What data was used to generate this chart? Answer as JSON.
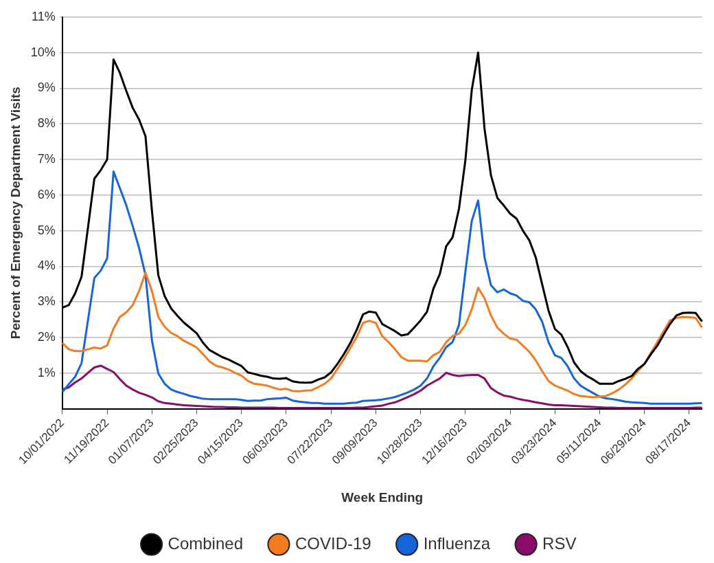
{
  "chart_data": {
    "type": "line",
    "xlabel": "Week Ending",
    "ylabel": "Percent of Emergency Department Visits",
    "categories": [
      "10/01/2022",
      null,
      null,
      null,
      null,
      null,
      null,
      "11/19/2022",
      null,
      null,
      null,
      null,
      null,
      null,
      "01/07/2023",
      null,
      null,
      null,
      null,
      null,
      null,
      "02/25/2023",
      null,
      null,
      null,
      null,
      null,
      null,
      "04/15/2023",
      null,
      null,
      null,
      null,
      null,
      null,
      "06/03/2023",
      null,
      null,
      null,
      null,
      null,
      null,
      "07/22/2023",
      null,
      null,
      null,
      null,
      null,
      null,
      "09/09/2023",
      null,
      null,
      null,
      null,
      null,
      null,
      "10/28/2023",
      null,
      null,
      null,
      null,
      null,
      null,
      "12/16/2023",
      null,
      null,
      null,
      null,
      null,
      null,
      "02/03/2024",
      null,
      null,
      null,
      null,
      null,
      null,
      "03/23/2024",
      null,
      null,
      null,
      null,
      null,
      null,
      "05/11/2024",
      null,
      null,
      null,
      null,
      null,
      null,
      "06/29/2024",
      null,
      null,
      null,
      null,
      null,
      null,
      "08/17/2024",
      null,
      null
    ],
    "series": [
      {
        "name": "Combined",
        "color": "#000000",
        "values": [
          2.84,
          2.91,
          3.24,
          3.71,
          5.08,
          6.46,
          6.7,
          7.0,
          9.81,
          9.43,
          8.92,
          8.45,
          8.12,
          7.65,
          5.57,
          3.75,
          3.16,
          2.82,
          2.61,
          2.42,
          2.27,
          2.12,
          1.85,
          1.65,
          1.55,
          1.45,
          1.38,
          1.29,
          1.2,
          1.02,
          0.98,
          0.93,
          0.9,
          0.85,
          0.84,
          0.86,
          0.77,
          0.74,
          0.73,
          0.74,
          0.82,
          0.88,
          1.02,
          1.26,
          1.53,
          1.84,
          2.21,
          2.65,
          2.73,
          2.7,
          2.38,
          2.28,
          2.18,
          2.06,
          2.09,
          2.28,
          2.48,
          2.72,
          3.37,
          3.78,
          4.56,
          4.81,
          5.61,
          6.97,
          8.95,
          10.0,
          7.86,
          6.56,
          5.92,
          5.71,
          5.48,
          5.34,
          5.0,
          4.73,
          4.25,
          3.5,
          2.76,
          2.24,
          2.08,
          1.73,
          1.3,
          1.06,
          0.92,
          0.82,
          0.7,
          0.7,
          0.7,
          0.78,
          0.84,
          0.92,
          1.12,
          1.26,
          1.53,
          1.77,
          2.08,
          2.38,
          2.62,
          2.69,
          2.7,
          2.69,
          2.45
        ]
      },
      {
        "name": "COVID-19",
        "color": "#f47b20",
        "values": [
          1.85,
          1.67,
          1.62,
          1.62,
          1.67,
          1.72,
          1.69,
          1.78,
          2.25,
          2.58,
          2.71,
          2.91,
          3.31,
          3.82,
          3.31,
          2.58,
          2.3,
          2.13,
          2.04,
          1.91,
          1.82,
          1.72,
          1.53,
          1.33,
          1.21,
          1.16,
          1.1,
          1.01,
          0.93,
          0.78,
          0.7,
          0.68,
          0.65,
          0.59,
          0.54,
          0.56,
          0.5,
          0.49,
          0.51,
          0.52,
          0.61,
          0.7,
          0.85,
          1.12,
          1.39,
          1.7,
          2.01,
          2.41,
          2.47,
          2.41,
          2.04,
          1.87,
          1.67,
          1.45,
          1.35,
          1.35,
          1.35,
          1.33,
          1.5,
          1.6,
          1.87,
          2.04,
          2.11,
          2.35,
          2.79,
          3.4,
          3.1,
          2.62,
          2.28,
          2.11,
          1.97,
          1.94,
          1.77,
          1.6,
          1.36,
          1.06,
          0.78,
          0.65,
          0.58,
          0.51,
          0.41,
          0.36,
          0.34,
          0.32,
          0.34,
          0.36,
          0.44,
          0.54,
          0.68,
          0.85,
          1.06,
          1.26,
          1.57,
          1.87,
          2.18,
          2.48,
          2.55,
          2.58,
          2.57,
          2.55,
          2.28
        ]
      },
      {
        "name": "Influenza",
        "color": "#1565d8",
        "values": [
          0.47,
          0.69,
          0.9,
          1.28,
          2.48,
          3.67,
          3.88,
          4.22,
          6.66,
          6.19,
          5.71,
          5.13,
          4.51,
          3.75,
          1.92,
          0.99,
          0.7,
          0.54,
          0.47,
          0.42,
          0.36,
          0.32,
          0.28,
          0.27,
          0.27,
          0.27,
          0.27,
          0.27,
          0.25,
          0.22,
          0.23,
          0.23,
          0.27,
          0.28,
          0.29,
          0.31,
          0.23,
          0.2,
          0.18,
          0.16,
          0.16,
          0.14,
          0.14,
          0.14,
          0.14,
          0.16,
          0.17,
          0.22,
          0.23,
          0.24,
          0.26,
          0.29,
          0.33,
          0.39,
          0.46,
          0.54,
          0.65,
          0.85,
          1.19,
          1.43,
          1.73,
          1.87,
          2.35,
          3.84,
          5.27,
          5.85,
          4.25,
          3.47,
          3.27,
          3.35,
          3.24,
          3.18,
          3.03,
          2.99,
          2.79,
          2.45,
          1.87,
          1.5,
          1.43,
          1.19,
          0.85,
          0.65,
          0.54,
          0.44,
          0.34,
          0.29,
          0.27,
          0.24,
          0.2,
          0.18,
          0.17,
          0.16,
          0.14,
          0.14,
          0.14,
          0.14,
          0.14,
          0.14,
          0.14,
          0.15,
          0.16
        ]
      },
      {
        "name": "RSV",
        "color": "#8a0c6b",
        "values": [
          0.54,
          0.6,
          0.74,
          0.85,
          1.01,
          1.16,
          1.21,
          1.12,
          1.03,
          0.83,
          0.65,
          0.54,
          0.45,
          0.39,
          0.32,
          0.21,
          0.16,
          0.14,
          0.12,
          0.1,
          0.09,
          0.08,
          0.07,
          0.06,
          0.05,
          0.05,
          0.04,
          0.04,
          0.03,
          0.03,
          0.03,
          0.03,
          0.03,
          0.03,
          0.02,
          0.02,
          0.02,
          0.02,
          0.02,
          0.02,
          0.02,
          0.02,
          0.02,
          0.02,
          0.02,
          0.02,
          0.03,
          0.03,
          0.05,
          0.07,
          0.09,
          0.14,
          0.18,
          0.25,
          0.33,
          0.41,
          0.51,
          0.65,
          0.75,
          0.85,
          1.01,
          0.95,
          0.92,
          0.94,
          0.95,
          0.95,
          0.85,
          0.58,
          0.46,
          0.37,
          0.34,
          0.29,
          0.25,
          0.22,
          0.18,
          0.15,
          0.12,
          0.1,
          0.1,
          0.09,
          0.08,
          0.07,
          0.06,
          0.05,
          0.04,
          0.03,
          0.03,
          0.02,
          0.02,
          0.02,
          0.02,
          0.02,
          0.02,
          0.02,
          0.02,
          0.02,
          0.02,
          0.02,
          0.02,
          0.03,
          0.03
        ]
      }
    ],
    "ylim": [
      0,
      11
    ],
    "yticks": [
      {
        "value": 1,
        "label": "1%"
      },
      {
        "value": 2,
        "label": "2%"
      },
      {
        "value": 3,
        "label": "3%"
      },
      {
        "value": 4,
        "label": "4%"
      },
      {
        "value": 5,
        "label": "5%"
      },
      {
        "value": 6,
        "label": "6%"
      },
      {
        "value": 7,
        "label": "7%"
      },
      {
        "value": 8,
        "label": "8%"
      },
      {
        "value": 9,
        "label": "9%"
      },
      {
        "value": 10,
        "label": "10%"
      },
      {
        "value": 11,
        "label": "11%"
      }
    ],
    "grid": "y",
    "legend": "bottom",
    "marker": "none",
    "line_style": "solid"
  }
}
